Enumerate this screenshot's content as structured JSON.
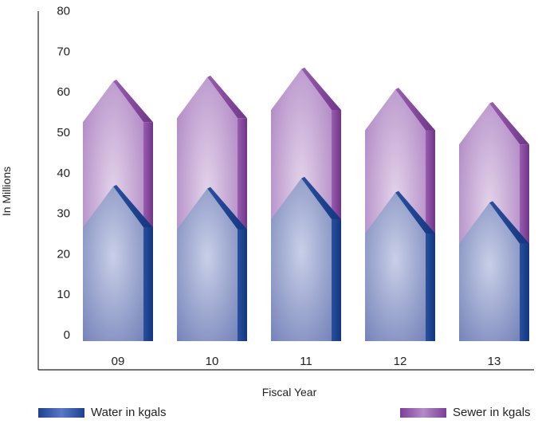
{
  "chart_data": {
    "type": "bar",
    "categories": [
      "09",
      "10",
      "11",
      "12",
      "13"
    ],
    "series": [
      {
        "name": "Water in kgals",
        "values": [
          37,
          36.5,
          39,
          35.5,
          33
        ]
      },
      {
        "name": "Sewer in kgals",
        "values": [
          63,
          64,
          66,
          61,
          57.5
        ]
      }
    ],
    "xlabel": "Fiscal Year",
    "ylabel": "In Millions",
    "ylim": [
      0,
      80
    ],
    "yticks": [
      0,
      10,
      20,
      30,
      40,
      50,
      60,
      70,
      80
    ],
    "grid": false,
    "legend": "bottom",
    "colors": {
      "water": "#1f3f8f",
      "water_light": "#c9cfe8",
      "sewer": "#7d3f98",
      "sewer_light": "#e0cfe6"
    }
  }
}
